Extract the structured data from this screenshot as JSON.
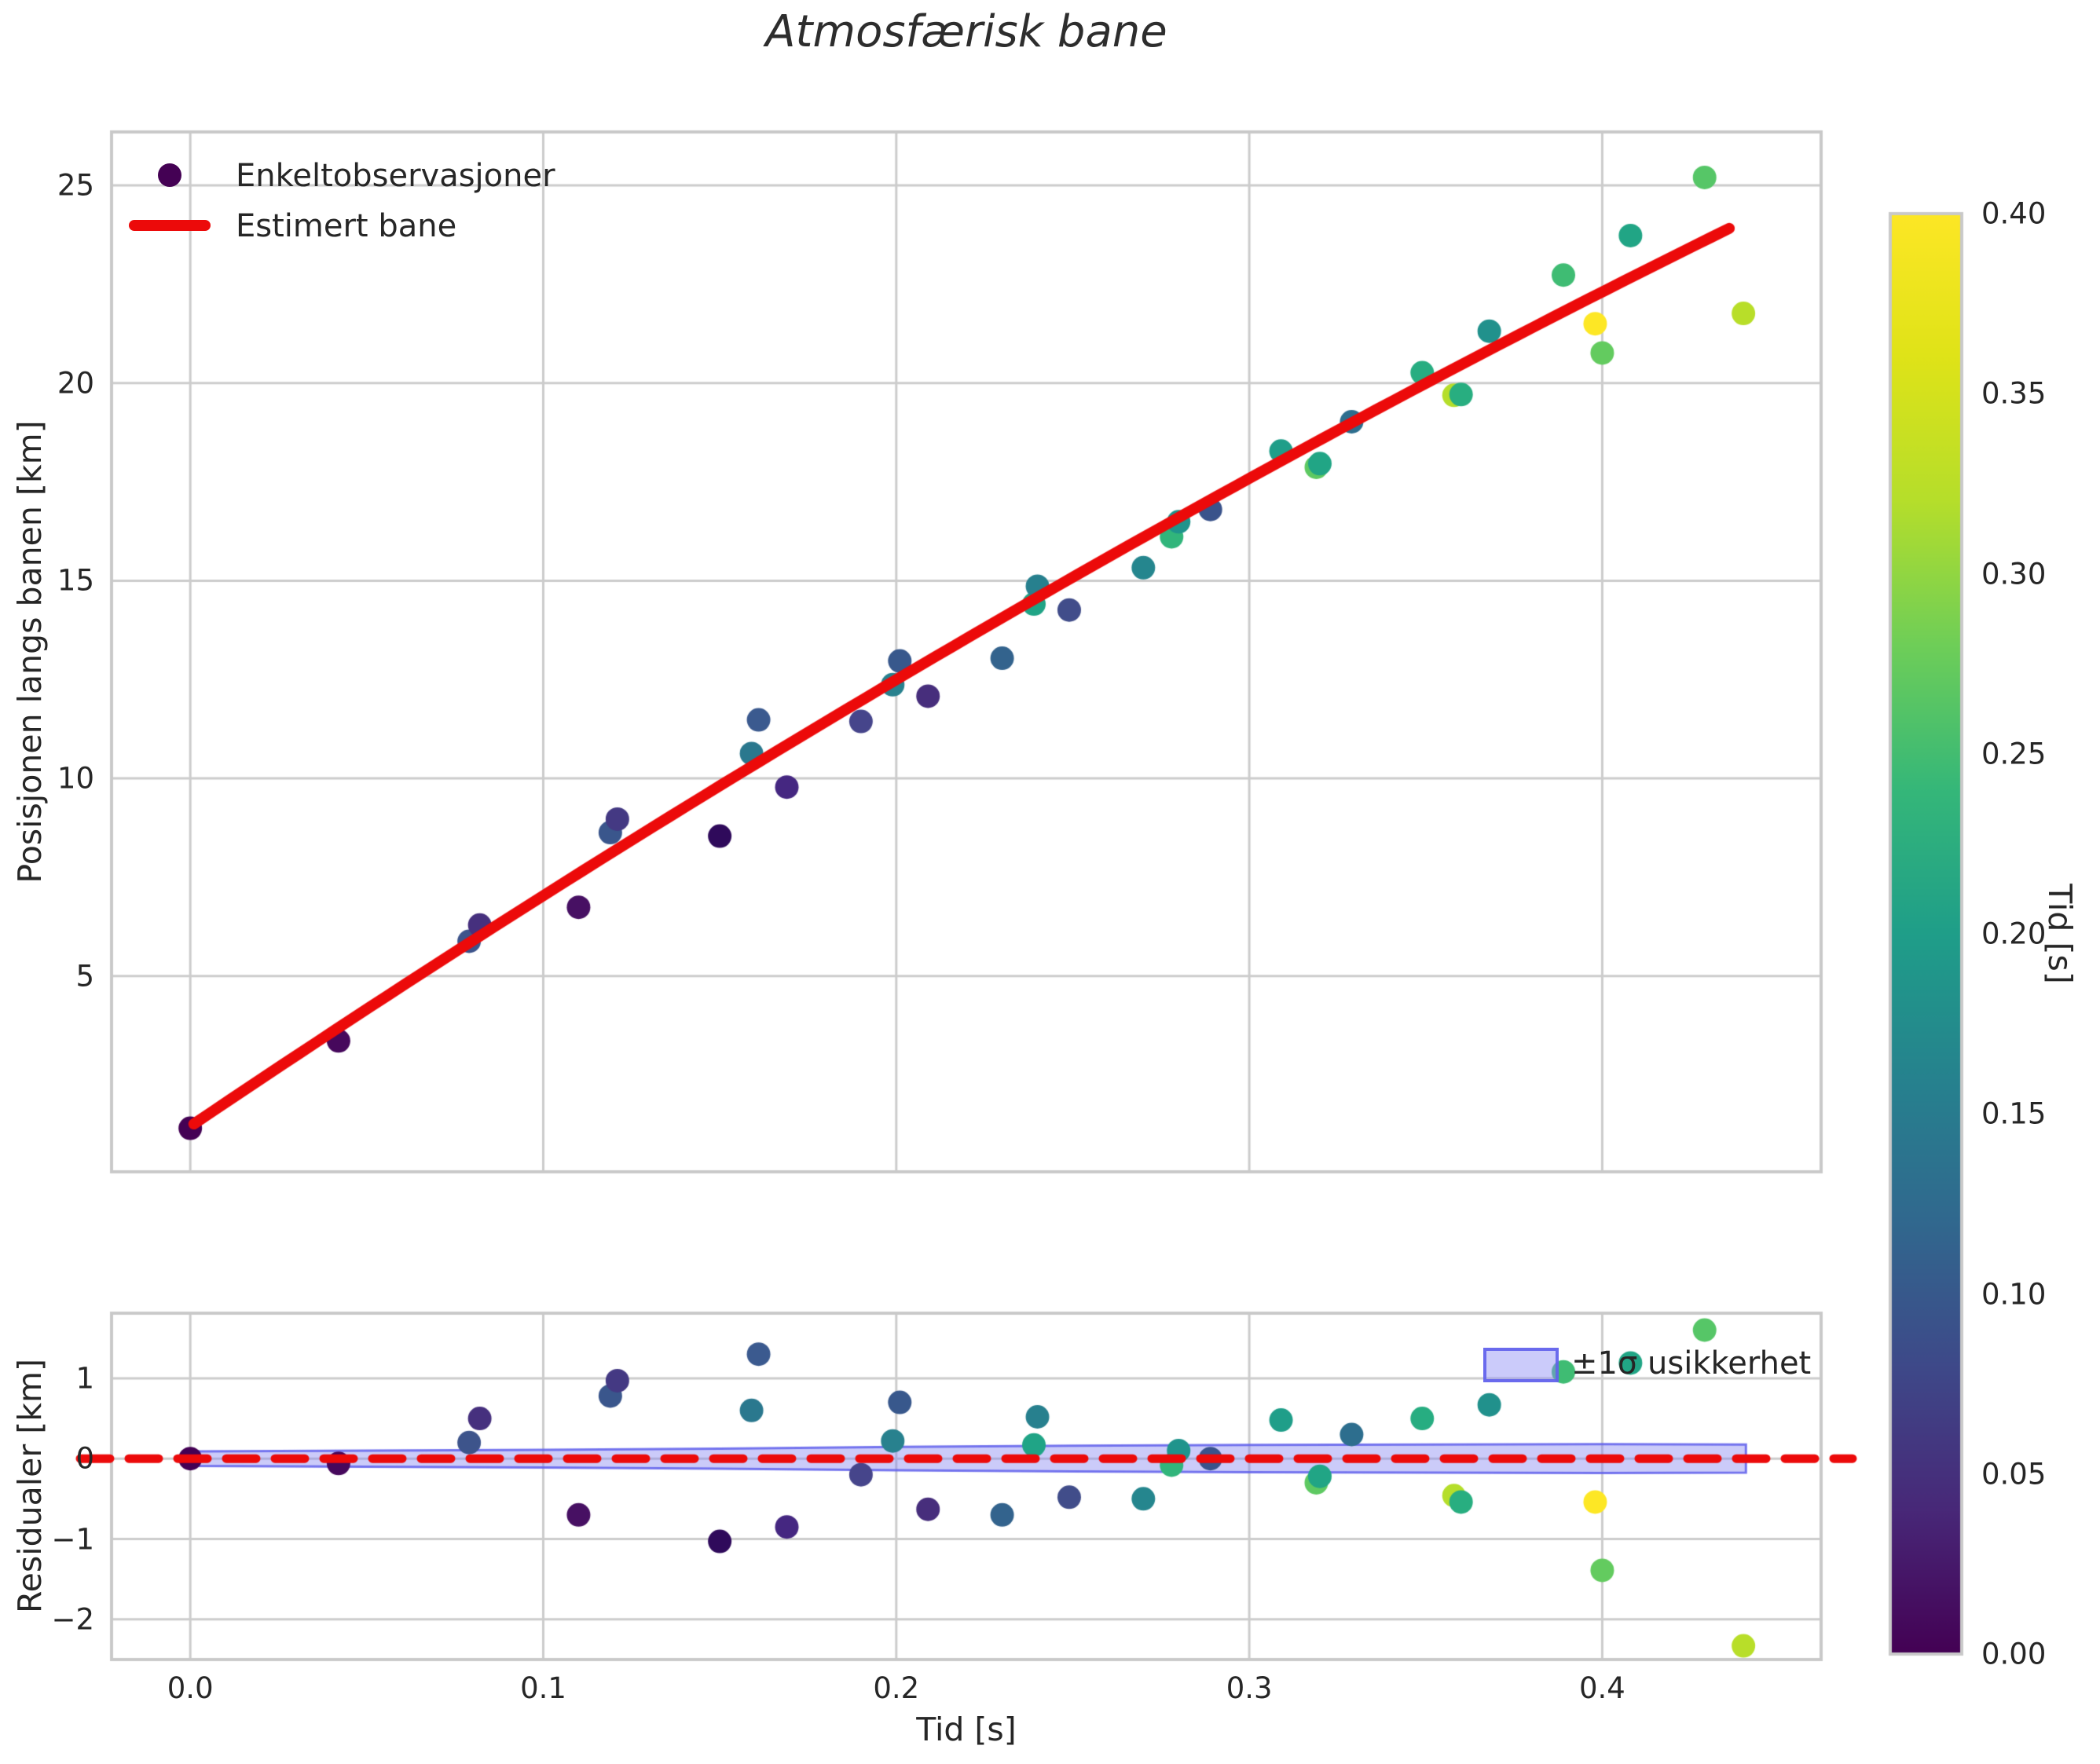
{
  "chart_data": {
    "type": "scatter",
    "title": "Atmosfærisk bane",
    "top": {
      "ylabel": "Posisjonen langs banen [km]",
      "legend": {
        "observations": "Enkeltobservasjoner",
        "fit": "Estimert bane"
      },
      "xlim": [
        -0.0223,
        0.462
      ],
      "ylim": [
        0.05,
        26.35
      ],
      "ytick_values": [
        25,
        20,
        15,
        10,
        5
      ],
      "ytick_labels": [
        "25",
        "20",
        "15",
        "10",
        "5"
      ],
      "grid_x_values": [
        0.0,
        0.1,
        0.2,
        0.3,
        0.4
      ],
      "grid_on": true
    },
    "bottom": {
      "ylabel": "Residualer [km]",
      "xlabel": "Tid [s]",
      "band_legend_label": "±1σ usikkerhet",
      "xlim": [
        -0.0223,
        0.462
      ],
      "ylim": [
        -2.5,
        1.81
      ],
      "ytick_values": [
        1,
        0,
        -1,
        -2
      ],
      "ytick_labels": [
        "1",
        "0",
        "−1",
        "−2"
      ],
      "xtick_values": [
        0.0,
        0.1,
        0.2,
        0.3,
        0.4
      ],
      "xtick_labels": [
        "0.0",
        "0.1",
        "0.2",
        "0.3",
        "0.4"
      ],
      "grid_on": true
    },
    "colorbar": {
      "label": "Tid [s]",
      "vmin": 0.0,
      "vmax": 0.4,
      "tick_values": [
        0.4,
        0.35,
        0.3,
        0.25,
        0.2,
        0.15,
        0.1,
        0.05,
        0.0
      ],
      "tick_labels": [
        "0.40",
        "0.35",
        "0.30",
        "0.25",
        "0.20",
        "0.15",
        "0.10",
        "0.05",
        "0.00"
      ],
      "viridis_stops": [
        [
          0.0,
          "#440154"
        ],
        [
          0.1,
          "#482878"
        ],
        [
          0.2,
          "#3e4989"
        ],
        [
          0.3,
          "#31688e"
        ],
        [
          0.4,
          "#26828e"
        ],
        [
          0.5,
          "#1f9e89"
        ],
        [
          0.6,
          "#35b779"
        ],
        [
          0.7,
          "#6ece58"
        ],
        [
          0.8,
          "#b5de2b"
        ],
        [
          0.9,
          "#dfe318"
        ],
        [
          1.0,
          "#fde725"
        ]
      ]
    },
    "points": [
      {
        "t": 0.0,
        "pos": 1.15,
        "res": 0.0,
        "color": "#440154"
      },
      {
        "t": 0.042,
        "pos": 3.36,
        "res": -0.06,
        "color": "#46085c"
      },
      {
        "t": 0.079,
        "pos": 5.88,
        "res": 0.2,
        "color": "#3d548b"
      },
      {
        "t": 0.082,
        "pos": 6.29,
        "res": 0.5,
        "color": "#46307e"
      },
      {
        "t": 0.11,
        "pos": 6.74,
        "res": -0.7,
        "color": "#471063"
      },
      {
        "t": 0.119,
        "pos": 8.63,
        "res": 0.78,
        "color": "#3a568c"
      },
      {
        "t": 0.121,
        "pos": 8.97,
        "res": 0.97,
        "color": "#443983"
      },
      {
        "t": 0.15,
        "pos": 8.54,
        "res": -1.03,
        "color": "#2f0a5b"
      },
      {
        "t": 0.159,
        "pos": 10.63,
        "res": 0.6,
        "color": "#2a788e"
      },
      {
        "t": 0.161,
        "pos": 11.48,
        "res": 1.3,
        "color": "#3b5a8f"
      },
      {
        "t": 0.169,
        "pos": 9.78,
        "res": -0.85,
        "color": "#452781"
      },
      {
        "t": 0.19,
        "pos": 11.44,
        "res": -0.2,
        "color": "#46458b"
      },
      {
        "t": 0.199,
        "pos": 12.37,
        "res": 0.22,
        "color": "#28818e"
      },
      {
        "t": 0.201,
        "pos": 12.97,
        "res": 0.7,
        "color": "#38588c"
      },
      {
        "t": 0.209,
        "pos": 12.08,
        "res": -0.63,
        "color": "#472e7c"
      },
      {
        "t": 0.23,
        "pos": 13.04,
        "res": -0.7,
        "color": "#33638d"
      },
      {
        "t": 0.239,
        "pos": 14.41,
        "res": 0.17,
        "color": "#20a486"
      },
      {
        "t": 0.24,
        "pos": 14.86,
        "res": 0.52,
        "color": "#27808e"
      },
      {
        "t": 0.249,
        "pos": 14.26,
        "res": -0.48,
        "color": "#414d8a"
      },
      {
        "t": 0.27,
        "pos": 15.33,
        "res": -0.5,
        "color": "#25868e"
      },
      {
        "t": 0.278,
        "pos": 16.11,
        "res": -0.08,
        "color": "#31b57b"
      },
      {
        "t": 0.28,
        "pos": 16.49,
        "res": 0.1,
        "color": "#1f948c"
      },
      {
        "t": 0.289,
        "pos": 16.8,
        "res": 0.0,
        "color": "#3a538b"
      },
      {
        "t": 0.309,
        "pos": 18.28,
        "res": 0.48,
        "color": "#1f9e89"
      },
      {
        "t": 0.319,
        "pos": 17.87,
        "res": -0.3,
        "color": "#5ec962"
      },
      {
        "t": 0.32,
        "pos": 17.96,
        "res": -0.22,
        "color": "#21a585"
      },
      {
        "t": 0.329,
        "pos": 19.02,
        "res": 0.3,
        "color": "#2d6e8e"
      },
      {
        "t": 0.349,
        "pos": 20.26,
        "res": 0.5,
        "color": "#27ad81"
      },
      {
        "t": 0.358,
        "pos": 19.69,
        "res": -0.46,
        "color": "#b5de2b"
      },
      {
        "t": 0.36,
        "pos": 19.71,
        "res": -0.54,
        "color": "#28ae80"
      },
      {
        "t": 0.368,
        "pos": 21.31,
        "res": 0.67,
        "color": "#21918c"
      },
      {
        "t": 0.389,
        "pos": 22.73,
        "res": 1.08,
        "color": "#3fbc73"
      },
      {
        "t": 0.398,
        "pos": 21.5,
        "res": -0.54,
        "color": "#fde725"
      },
      {
        "t": 0.4,
        "pos": 20.76,
        "res": -1.39,
        "color": "#63cb5f"
      },
      {
        "t": 0.408,
        "pos": 23.73,
        "res": 1.19,
        "color": "#21a585"
      },
      {
        "t": 0.429,
        "pos": 25.2,
        "res": 1.6,
        "color": "#56c667"
      },
      {
        "t": 0.44,
        "pos": 21.76,
        "res": -2.33,
        "color": "#b8de29"
      }
    ],
    "fit_line": {
      "model": "quadratic",
      "coeffs": [
        1.2,
        60.2,
        -18.6
      ],
      "t_start": 0.001,
      "t_end": 0.4405,
      "color": "#ec0a0a",
      "width": 14
    },
    "zero_line": {
      "color": "#ec0a0a",
      "dash": [
        38,
        24
      ],
      "width": 11
    },
    "uncertainty_band": {
      "t": [
        0.0,
        0.05,
        0.1,
        0.15,
        0.2,
        0.25,
        0.3,
        0.35,
        0.4,
        0.4407
      ],
      "sigma": [
        0.09,
        0.1,
        0.11,
        0.125,
        0.145,
        0.16,
        0.17,
        0.175,
        0.18,
        0.175
      ],
      "fill": "rgba(125,125,240,0.40)",
      "edge": "rgba(95,95,235,0.85)"
    },
    "style": {
      "grid_color": "#cccccc",
      "spine_color": "#c9c9c9",
      "marker_radius": 15
    }
  }
}
